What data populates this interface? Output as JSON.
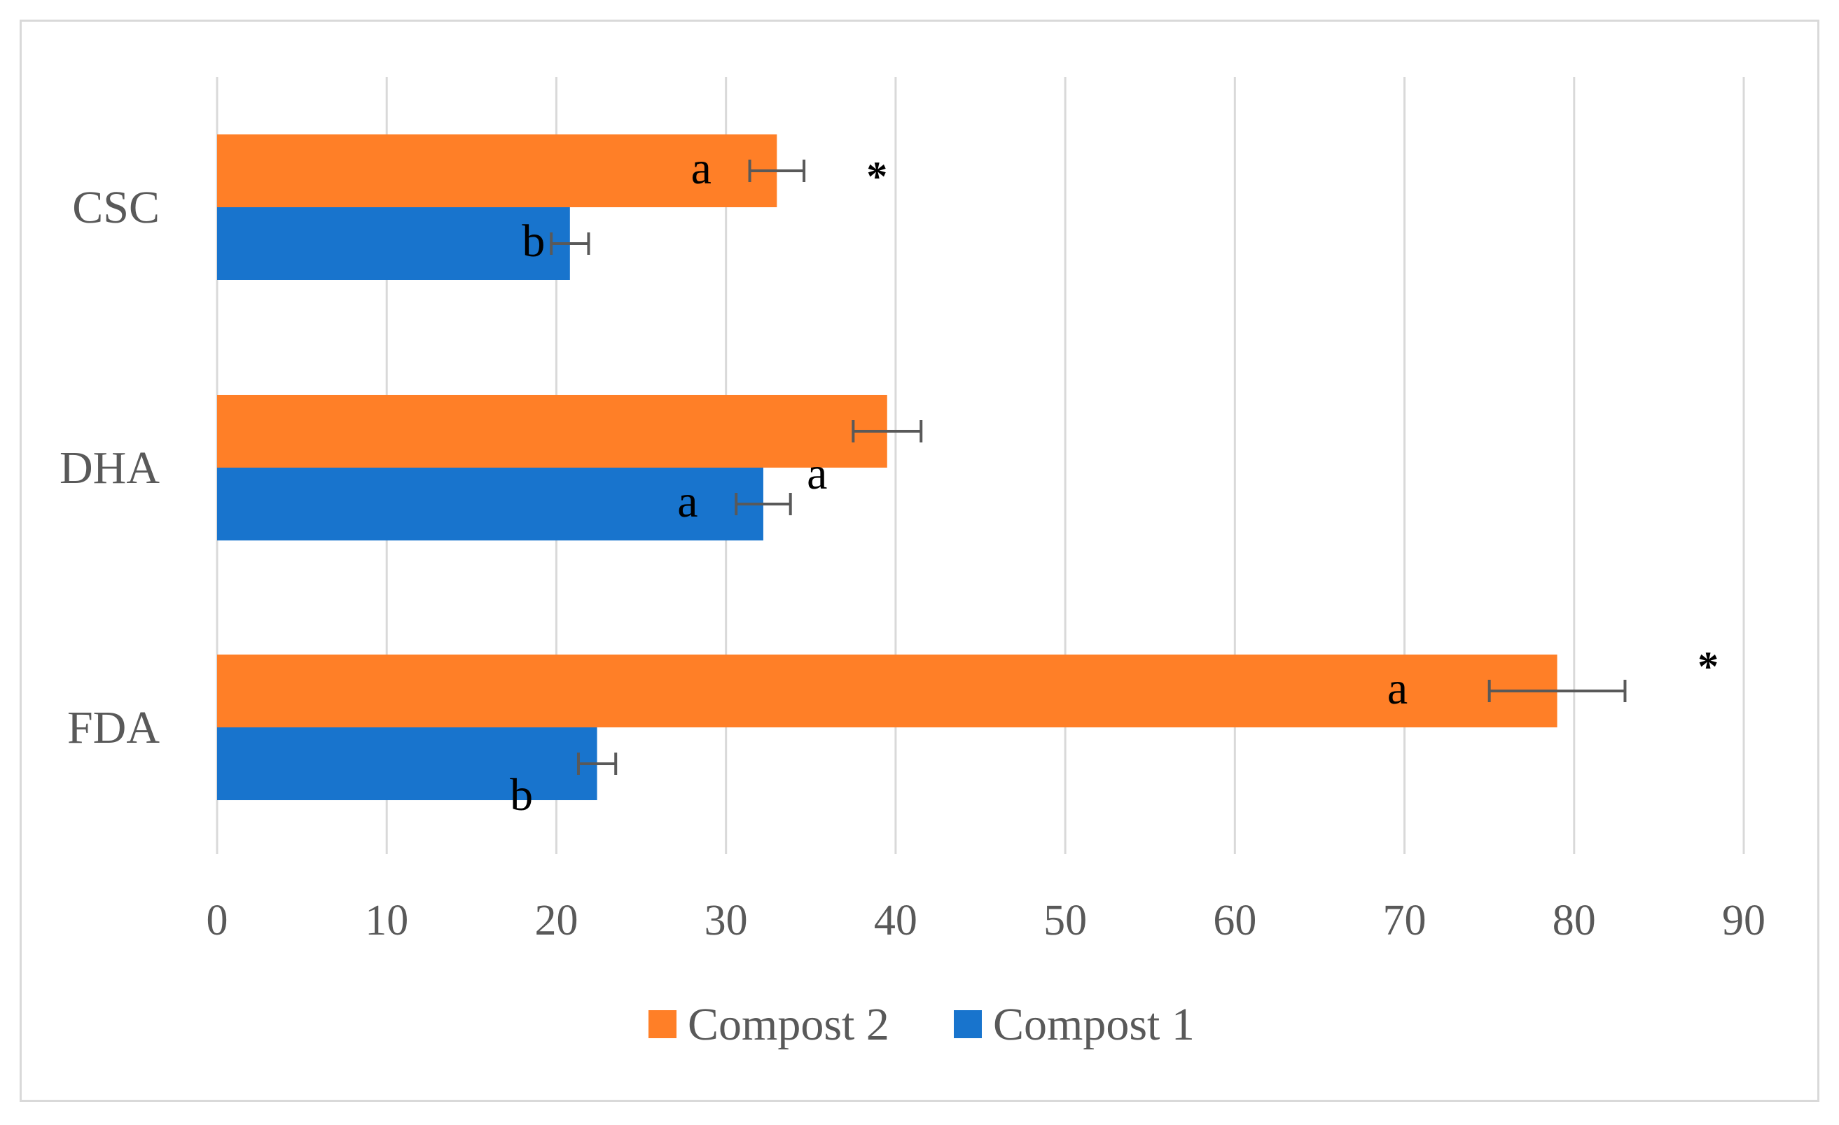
{
  "chart_data": {
    "type": "bar",
    "orientation": "horizontal",
    "categories": [
      "CSC",
      "DHA",
      "FDA"
    ],
    "series": [
      {
        "name": "Compost 2",
        "color": "#FF7F27",
        "values": [
          33.0,
          39.5,
          79.0
        ],
        "errors": [
          1.6,
          2.0,
          4.0
        ],
        "letters": [
          "a",
          "a",
          "a"
        ]
      },
      {
        "name": "Compost 1",
        "color": "#1874CD",
        "values": [
          20.8,
          32.2,
          22.4
        ],
        "errors": [
          1.1,
          1.6,
          1.1
        ],
        "letters": [
          "b",
          "a",
          "b"
        ]
      }
    ],
    "significance": [
      {
        "category": "CSC",
        "text": "*"
      },
      {
        "category": "FDA",
        "text": "*"
      }
    ],
    "xlim": [
      0,
      90
    ],
    "x_ticks": [
      "0",
      "10",
      "20",
      "30",
      "40",
      "50",
      "60",
      "70",
      "80",
      "90"
    ],
    "xlabel": "",
    "ylabel": "",
    "title": "",
    "grid": "vertical",
    "legend_position": "bottom",
    "legend_order": [
      "Compost 2",
      "Compost 1"
    ],
    "gridline_color": "#d9d9d9",
    "errorbar_color": "#595959"
  }
}
